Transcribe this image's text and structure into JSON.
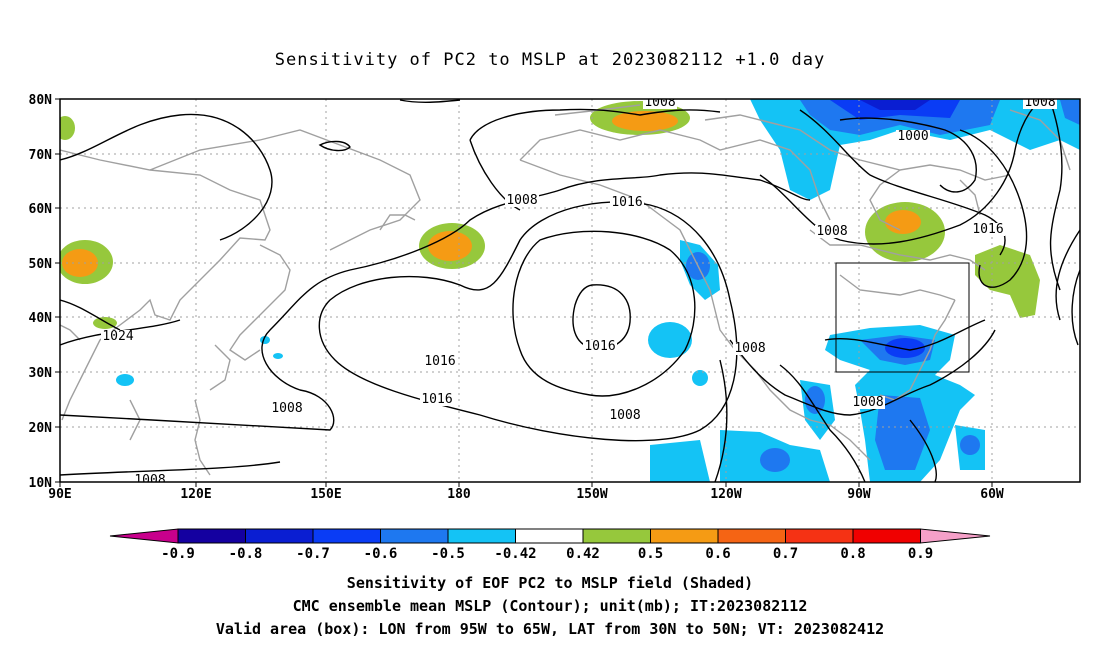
{
  "title": "Sensitivity of PC2 to MSLP at 2023082112 +1.0 day",
  "map": {
    "lat_ticks": [
      "80N",
      "70N",
      "60N",
      "50N",
      "40N",
      "30N",
      "20N",
      "10N"
    ],
    "lon_ticks": [
      "90E",
      "120E",
      "150E",
      "180",
      "150W",
      "120W",
      "90W",
      "60W"
    ],
    "contour_labels": [
      "1008",
      "1000",
      "1008",
      "1016",
      "1008",
      "1016",
      "1024",
      "1016",
      "1016",
      "1008",
      "1016",
      "1008",
      "1008",
      "1008",
      "1008",
      "1008"
    ],
    "valid_box": {
      "lon": [
        "95W",
        "65W"
      ],
      "lat": [
        "30N",
        "50N"
      ]
    }
  },
  "colorbar": {
    "labels": [
      "-0.9",
      "-0.8",
      "-0.7",
      "-0.6",
      "-0.5",
      "-0.42",
      "0.42",
      "0.5",
      "0.6",
      "0.7",
      "0.8",
      "0.9"
    ],
    "colors": [
      "#c8008c",
      "#1400a0",
      "#0a1ed2",
      "#0a3cf5",
      "#1e78f0",
      "#14c3f5",
      "#ffffff",
      "#96c83c",
      "#f59b14",
      "#f56414",
      "#f53214",
      "#f00000",
      "#f5a0c8"
    ]
  },
  "caption": {
    "line1": "Sensitivity of EOF PC2 to MSLP field (Shaded)",
    "line2": "CMC ensemble mean MSLP (Contour); unit(mb); IT:2023082112",
    "line3": "Valid area (box): LON from 95W to 65W, LAT from 30N to 50N; VT: 2023082412"
  }
}
